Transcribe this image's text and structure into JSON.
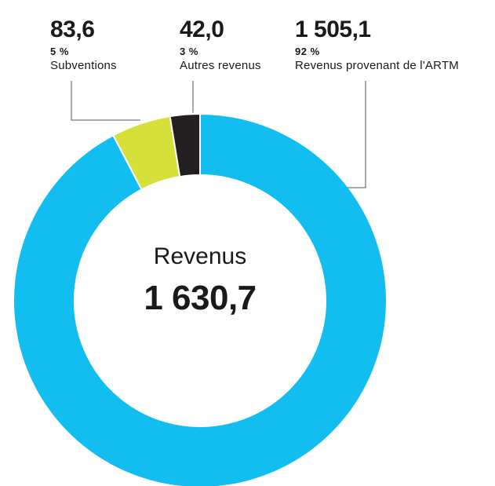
{
  "chart_data": {
    "type": "pie",
    "title": "Revenus",
    "total": "1 630,7",
    "slices": [
      {
        "label": "Revenus provenant de l'ARTM",
        "value_text": "1 505,1",
        "value": 1505.1,
        "percent_text": "92 %",
        "color": "#12bdf0"
      },
      {
        "label": "Subventions",
        "value_text": "83,6",
        "value": 83.6,
        "percent_text": "5 %",
        "color": "#d5e03a"
      },
      {
        "label": "Autres revenus",
        "value_text": "42,0",
        "value": 42.0,
        "percent_text": "3 %",
        "color": "#231f20"
      }
    ]
  }
}
